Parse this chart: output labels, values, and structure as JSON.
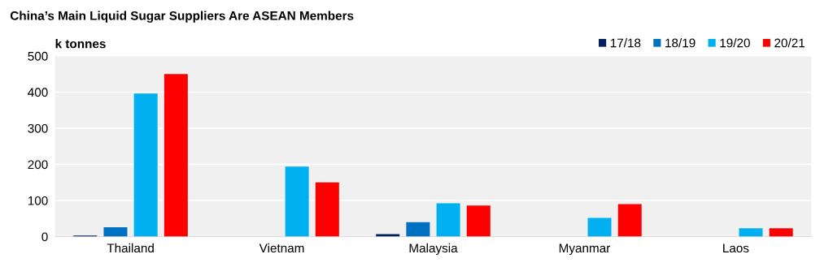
{
  "chart_data": {
    "type": "bar",
    "title": "China’s Main Liquid Sugar Suppliers Are ASEAN Members",
    "ylabel": "k tonnes",
    "categories": [
      "Thailand",
      "Vietnam",
      "Malaysia",
      "Myanmar",
      "Laos"
    ],
    "series": [
      {
        "name": "17/18",
        "color": "#002060",
        "values": [
          3,
          null,
          7,
          null,
          null
        ]
      },
      {
        "name": "18/19",
        "color": "#0070c0",
        "values": [
          26,
          null,
          40,
          null,
          null
        ]
      },
      {
        "name": "19/20",
        "color": "#00b0f0",
        "values": [
          396,
          194,
          92,
          52,
          23
        ]
      },
      {
        "name": "20/21",
        "color": "#ff0000",
        "values": [
          450,
          150,
          86,
          90,
          23
        ]
      }
    ],
    "ylim": [
      0,
      500
    ],
    "yticks": [
      0,
      100,
      200,
      300,
      400,
      500
    ],
    "grid": "y",
    "legend": "top right"
  }
}
